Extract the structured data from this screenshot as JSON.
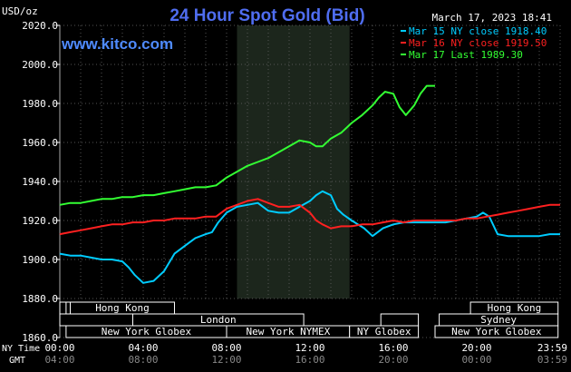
{
  "chart_data": {
    "type": "line",
    "title": "24 Hour Spot Gold (Bid)",
    "ylabel": "USD/oz",
    "date": "March 17, 2023 18:41",
    "watermark": "www.kitco.com",
    "ylim": [
      1860,
      2020
    ],
    "yticks": [
      "2020.0",
      "2000.0",
      "1980.0",
      "1960.0",
      "1940.0",
      "1920.0",
      "1900.0",
      "1880.0",
      "1860.0"
    ],
    "grid": true,
    "legend_position": "top-right",
    "x_time_labels": {
      "ny_label": "NY Time",
      "gmt_label": "GMT",
      "ny": [
        "00:00",
        "04:00",
        "08:00",
        "12:00",
        "16:00",
        "20:00",
        "23:59"
      ],
      "gmt": [
        "04:00",
        "08:00",
        "12:00",
        "16:00",
        "20:00",
        "00:00",
        "03:59"
      ]
    },
    "series": [
      {
        "name": "Mar 15 NY close 1918.40",
        "color": "#00ccff",
        "x": [
          0,
          0.5,
          1,
          1.5,
          2,
          2.5,
          3,
          3.3,
          3.6,
          4,
          4.5,
          5,
          5.5,
          6,
          6.5,
          7,
          7.3,
          7.6,
          8,
          8.5,
          9,
          9.5,
          10,
          10.5,
          11,
          11.5,
          12,
          12.3,
          12.6,
          13,
          13.3,
          13.6,
          14,
          14.3,
          14.6,
          15,
          15.5,
          16,
          16.5,
          17,
          17.5,
          18,
          18.5,
          19,
          19.5,
          20,
          20.3,
          20.6,
          21,
          21.5,
          22,
          22.5,
          23,
          23.5,
          24
        ],
        "values": [
          1903,
          1902,
          1902,
          1901,
          1900,
          1900,
          1899,
          1896,
          1892,
          1888,
          1889,
          1894,
          1903,
          1907,
          1911,
          1913,
          1914,
          1919,
          1924,
          1927,
          1928,
          1929,
          1925,
          1924,
          1924,
          1927,
          1930,
          1933,
          1935,
          1933,
          1926,
          1923,
          1920,
          1918,
          1916,
          1912,
          1916,
          1918,
          1919,
          1919,
          1919,
          1919,
          1919,
          1920,
          1921,
          1922,
          1924,
          1922,
          1913,
          1912,
          1912,
          1912,
          1912,
          1913,
          1913
        ]
      },
      {
        "name": "Mar 16 NY close 1919.50",
        "color": "#ff2020",
        "x": [
          0,
          0.5,
          1,
          1.5,
          2,
          2.5,
          3,
          3.5,
          4,
          4.5,
          5,
          5.5,
          6,
          6.5,
          7,
          7.5,
          8,
          8.5,
          9,
          9.5,
          10,
          10.5,
          11,
          11.5,
          12,
          12.3,
          12.6,
          13,
          13.5,
          14,
          14.5,
          15,
          15.5,
          16,
          16.5,
          17,
          17.5,
          18,
          18.5,
          19,
          19.5,
          20,
          20.5,
          21,
          21.5,
          22,
          22.5,
          23,
          23.5,
          24
        ],
        "values": [
          1913,
          1914,
          1915,
          1916,
          1917,
          1918,
          1918,
          1919,
          1919,
          1920,
          1920,
          1921,
          1921,
          1921,
          1922,
          1922,
          1926,
          1928,
          1930,
          1931,
          1929,
          1927,
          1927,
          1928,
          1924,
          1920,
          1918,
          1916,
          1917,
          1917,
          1918,
          1918,
          1919,
          1920,
          1919,
          1920,
          1920,
          1920,
          1920,
          1920,
          1921,
          1921,
          1922,
          1923,
          1924,
          1925,
          1926,
          1927,
          1928,
          1928
        ]
      },
      {
        "name": "Mar 17 Last 1989.30",
        "color": "#33ff33",
        "x": [
          0,
          0.5,
          1,
          1.5,
          2,
          2.5,
          3,
          3.5,
          4,
          4.5,
          5,
          5.5,
          6,
          6.5,
          7,
          7.5,
          8,
          8.5,
          9,
          9.5,
          10,
          10.5,
          11,
          11.5,
          12,
          12.3,
          12.6,
          13,
          13.5,
          14,
          14.5,
          15,
          15.3,
          15.6,
          16,
          16.3,
          16.6,
          17,
          17.3,
          17.6,
          18
        ],
        "values": [
          1928,
          1929,
          1929,
          1930,
          1931,
          1931,
          1932,
          1932,
          1933,
          1933,
          1934,
          1935,
          1936,
          1937,
          1937,
          1938,
          1942,
          1945,
          1948,
          1950,
          1952,
          1955,
          1958,
          1961,
          1960,
          1958,
          1958,
          1962,
          1965,
          1970,
          1974,
          1979,
          1983,
          1986,
          1985,
          1978,
          1974,
          1979,
          1985,
          1989,
          1989
        ]
      }
    ],
    "sessions": [
      {
        "row": 0,
        "label": "Hong Kong",
        "start": 0.5,
        "end": 5.5
      },
      {
        "row": 0,
        "label": "Hong Kong",
        "start": 19.7,
        "end": 23.9
      },
      {
        "row": 1,
        "label": "London",
        "start": 3.5,
        "end": 11.7
      },
      {
        "row": 1,
        "label": "Sydney",
        "start": 18.2,
        "end": 23.9
      },
      {
        "row": 2,
        "label": "New York Globex",
        "start": 0.3,
        "end": 8.0
      },
      {
        "row": 2,
        "label": "New York NYMEX",
        "start": 8.0,
        "end": 13.9
      },
      {
        "row": 2,
        "label": "NY Globex",
        "start": 13.9,
        "end": 17.2
      },
      {
        "row": 2,
        "label": "New York Globex",
        "start": 18.0,
        "end": 23.9
      }
    ],
    "empty_boxes": [
      {
        "row": 0,
        "start": 0,
        "end": 0.5
      },
      {
        "row": 1,
        "start": 0,
        "end": 3.5
      },
      {
        "row": 1,
        "start": 15.4,
        "end": 17.2
      },
      {
        "row": 0,
        "start": 0,
        "end": 0.3
      }
    ],
    "highlight_range": [
      8.5,
      13.9
    ]
  }
}
